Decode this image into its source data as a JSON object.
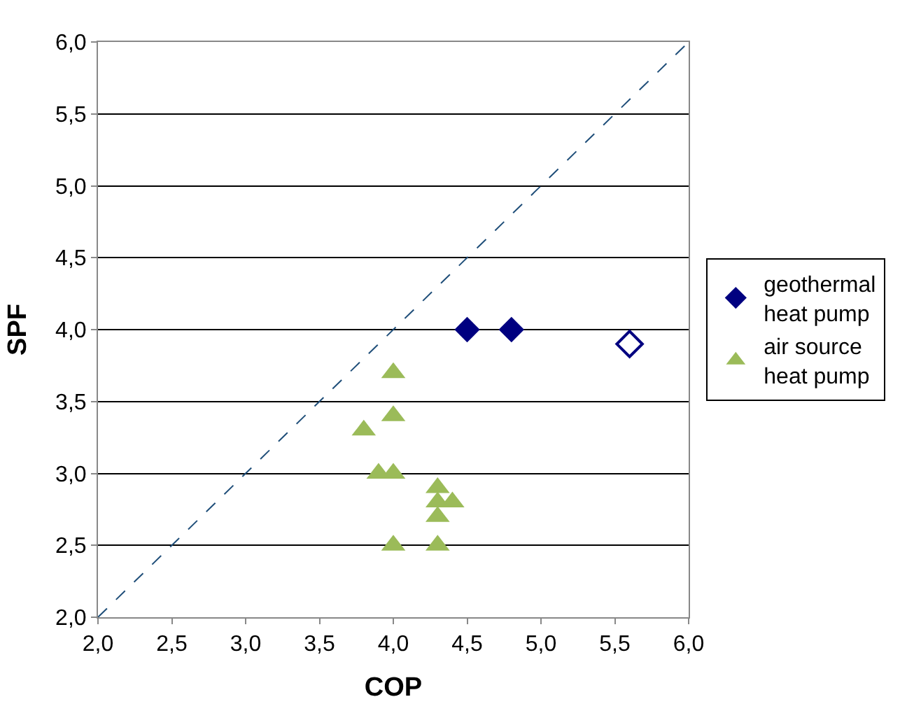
{
  "chart_data": {
    "type": "scatter",
    "xlabel": "COP",
    "ylabel": "SPF",
    "xlim": [
      2.0,
      6.0
    ],
    "ylim": [
      2.0,
      6.0
    ],
    "xticks": [
      {
        "value": 2.0,
        "label": "2,0"
      },
      {
        "value": 2.5,
        "label": "2,5"
      },
      {
        "value": 3.0,
        "label": "3,0"
      },
      {
        "value": 3.5,
        "label": "3,5"
      },
      {
        "value": 4.0,
        "label": "4,0"
      },
      {
        "value": 4.5,
        "label": "4,5"
      },
      {
        "value": 5.0,
        "label": "5,0"
      },
      {
        "value": 5.5,
        "label": "5,5"
      },
      {
        "value": 6.0,
        "label": "6,0"
      }
    ],
    "yticks": [
      {
        "value": 2.0,
        "label": "2,0"
      },
      {
        "value": 2.5,
        "label": "2,5"
      },
      {
        "value": 3.0,
        "label": "3,0"
      },
      {
        "value": 3.5,
        "label": "3,5"
      },
      {
        "value": 4.0,
        "label": "4,0"
      },
      {
        "value": 4.5,
        "label": "4,5"
      },
      {
        "value": 5.0,
        "label": "5,0"
      },
      {
        "value": 5.5,
        "label": "5,5"
      },
      {
        "value": 6.0,
        "label": "6,0"
      }
    ],
    "grid": "y",
    "legend": "right",
    "series": [
      {
        "name": "geothermal heat pump",
        "color": "#000080",
        "marker": "diamond",
        "x": [
          4.5,
          4.8
        ],
        "values": [
          4.0,
          4.0
        ]
      },
      {
        "color": "#000080",
        "marker": "diamond",
        "x": [
          5.6
        ],
        "values": [
          3.9
        ]
      },
      {
        "name": "air source heat pump",
        "color": "#9bbb59",
        "marker": "triangle",
        "x": [
          4.0,
          4.0,
          3.8,
          3.9,
          4.0,
          4.3,
          4.4,
          4.3,
          4.3,
          4.0,
          4.3
        ],
        "values": [
          3.7,
          3.4,
          3.3,
          3.0,
          3.0,
          2.9,
          2.8,
          2.8,
          2.7,
          2.5,
          2.5
        ]
      },
      {
        "type": "line",
        "color": "#1f4e79",
        "line_style": "dashed",
        "marker": "none",
        "x": [
          2.0,
          6.0
        ],
        "values": [
          2.0,
          6.0
        ]
      }
    ]
  }
}
